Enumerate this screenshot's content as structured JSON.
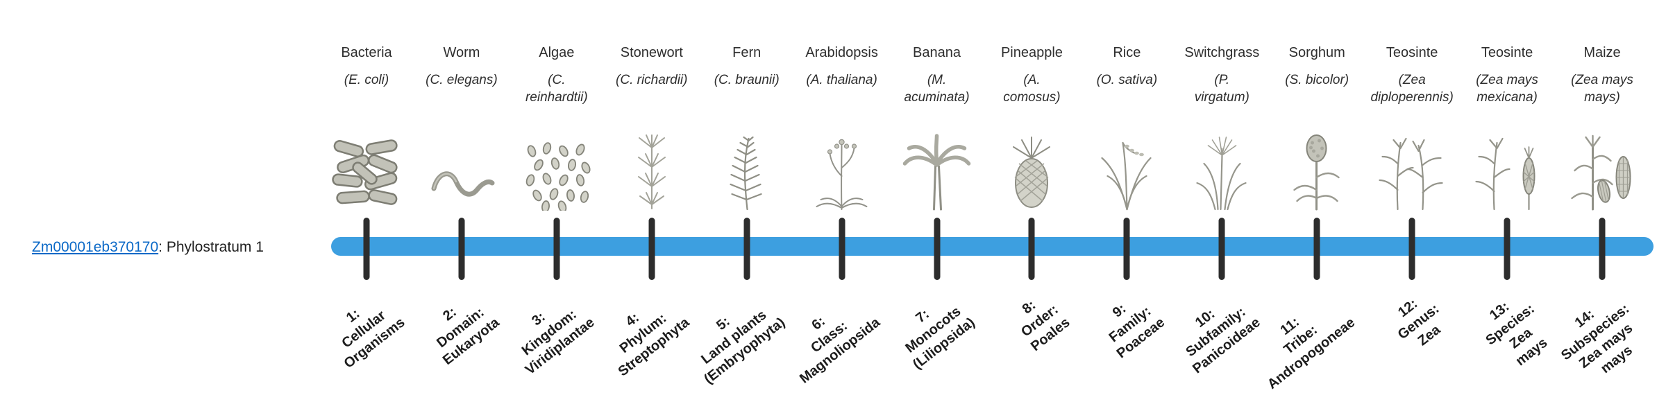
{
  "gene": {
    "id": "Zm00001eb370170",
    "label_suffix": ": Phylostratum 1"
  },
  "timeline": {
    "bar_color": "#3d9fe0",
    "tick_color": "#2d2d2d",
    "link_color": "#0b69c7"
  },
  "taxa": [
    {
      "common": "Bacteria",
      "scientific": "(E. coli)",
      "illustration": "bacteria-illustration",
      "stratum": "1:\nCellular\nOrganisms"
    },
    {
      "common": "Worm",
      "scientific": "(C. elegans)",
      "illustration": "worm-illustration",
      "stratum": "2:\nDomain:\nEukaryota"
    },
    {
      "common": "Algae",
      "scientific": "(C.\nreinhardtii)",
      "illustration": "algae-illustration",
      "stratum": "3:\nKingdom:\nViridiplantae"
    },
    {
      "common": "Stonewort",
      "scientific": "(C. richardii)",
      "illustration": "stonewort-illustration",
      "stratum": "4:\nPhylum:\nStreptophyta"
    },
    {
      "common": "Fern",
      "scientific": "(C. braunii)",
      "illustration": "fern-illustration",
      "stratum": "5:\nLand plants\n(Embryophyta)"
    },
    {
      "common": "Arabidopsis",
      "scientific": "(A. thaliana)",
      "illustration": "arabidopsis-illustration",
      "stratum": "6:\nClass:\nMagnoliopsida"
    },
    {
      "common": "Banana",
      "scientific": "(M.\nacuminata)",
      "illustration": "banana-illustration",
      "stratum": "7:\nMonocots\n(Liliopsida)"
    },
    {
      "common": "Pineapple",
      "scientific": "(A.\ncomosus)",
      "illustration": "pineapple-illustration",
      "stratum": "8:\nOrder:\nPoales"
    },
    {
      "common": "Rice",
      "scientific": "(O. sativa)",
      "illustration": "rice-illustration",
      "stratum": "9:\nFamily:\nPoaceae"
    },
    {
      "common": "Switchgrass",
      "scientific": "(P.\nvirgatum)",
      "illustration": "switchgrass-illustration",
      "stratum": "10:\nSubfamily:\nPanicoideae"
    },
    {
      "common": "Sorghum",
      "scientific": "(S. bicolor)",
      "illustration": "sorghum-illustration",
      "stratum": "11:\nTribe:\nAndropogoneae"
    },
    {
      "common": "Teosinte",
      "scientific": "(Zea\ndiploperennis)",
      "illustration": "teosinte-diploperennis-illustration",
      "stratum": "12:\nGenus:\nZea"
    },
    {
      "common": "Teosinte",
      "scientific": "(Zea mays\nmexicana)",
      "illustration": "teosinte-mexicana-illustration",
      "stratum": "13:\nSpecies:\nZea\nmays"
    },
    {
      "common": "Maize",
      "scientific": "(Zea mays\nmays)",
      "illustration": "maize-illustration",
      "stratum": "14:\nSubspecies:\nZea mays\nmays"
    }
  ]
}
